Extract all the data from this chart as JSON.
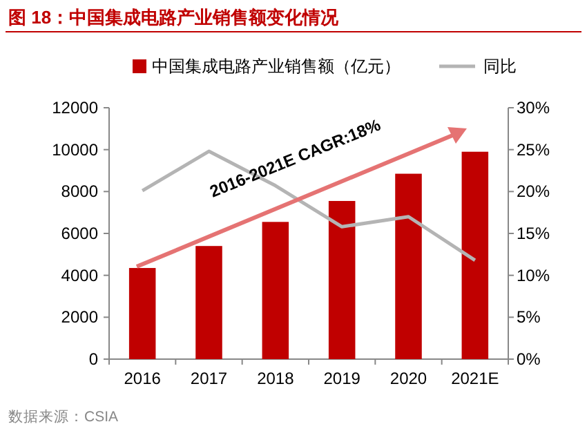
{
  "chart_data": {
    "type": "bar",
    "title": "图 18：中国集成电路产业销售额变化情况",
    "categories": [
      "2016",
      "2017",
      "2018",
      "2019",
      "2020",
      "2021E"
    ],
    "series": [
      {
        "name": "中国集成电路产业销售额（亿元）",
        "color": "#c00000",
        "values": [
          4350,
          5400,
          6550,
          7550,
          8850,
          9900
        ]
      },
      {
        "name": "同比",
        "type": "line",
        "axis": "y2",
        "color": "#b4b4b4",
        "values": [
          20.1,
          24.8,
          20.7,
          15.8,
          17.0,
          11.8
        ]
      }
    ],
    "ylim": [
      0,
      12000
    ],
    "yticks": [
      0,
      2000,
      4000,
      6000,
      8000,
      10000,
      12000
    ],
    "y2lim": [
      0,
      30
    ],
    "y2ticks": [
      {
        "value": 0,
        "label": "0%"
      },
      {
        "value": 5,
        "label": "5%"
      },
      {
        "value": 10,
        "label": "10%"
      },
      {
        "value": 15,
        "label": "15%"
      },
      {
        "value": 20,
        "label": "20%"
      },
      {
        "value": 25,
        "label": "25%"
      },
      {
        "value": 30,
        "label": "30%"
      }
    ],
    "legend": "top",
    "annotations": [
      "2016-2021E CAGR:18%",
      "数据来源：CSIA"
    ]
  }
}
